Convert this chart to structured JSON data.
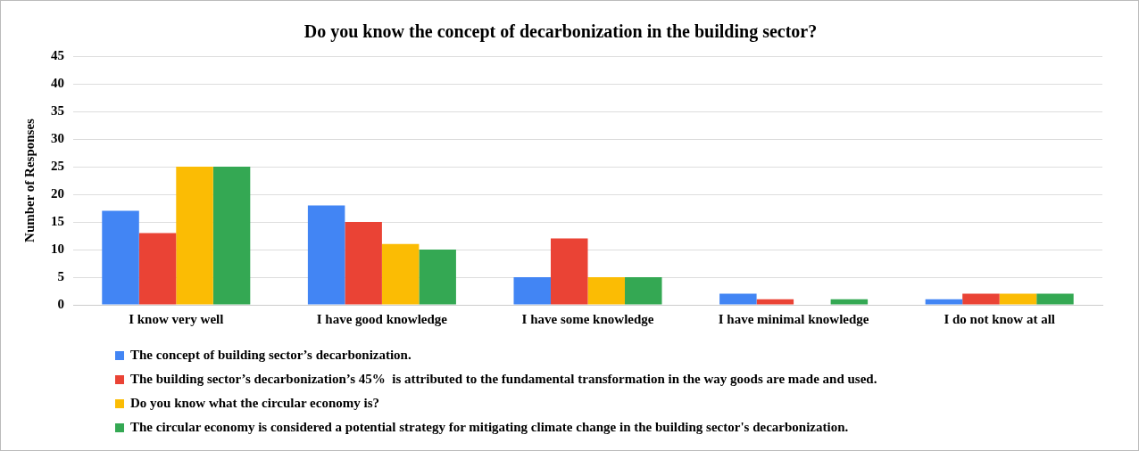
{
  "chart_data": {
    "type": "bar",
    "title": "Do you know the concept of decarbonization in the building sector?",
    "ylabel": "Number of Responses",
    "categories": [
      "I know very well",
      "I have good knowledge",
      "I have some knowledge",
      "I have minimal knowledge",
      "I do not know at all"
    ],
    "series": [
      {
        "name": "The concept of building sector’s decarbonization.",
        "color": "#4285f4",
        "values": [
          17,
          18,
          5,
          2,
          1
        ]
      },
      {
        "name": "The building sector’s decarbonization’s 45%  is attributed to the fundamental transformation in the way goods are made and used.",
        "color": "#ea4335",
        "values": [
          13,
          15,
          12,
          1,
          2
        ]
      },
      {
        "name": "Do you know what the circular economy is?",
        "color": "#fbbc04",
        "values": [
          25,
          11,
          5,
          0,
          2
        ]
      },
      {
        "name": "The circular economy is considered a potential strategy for mitigating climate change in the building sector's decarbonization.",
        "color": "#34a853",
        "values": [
          25,
          10,
          5,
          1,
          2
        ]
      }
    ],
    "ylim": [
      0,
      45
    ],
    "yticks": [
      0,
      5,
      10,
      15,
      20,
      25,
      30,
      35,
      40,
      45
    ],
    "grid": "y",
    "legend": "bottom"
  }
}
